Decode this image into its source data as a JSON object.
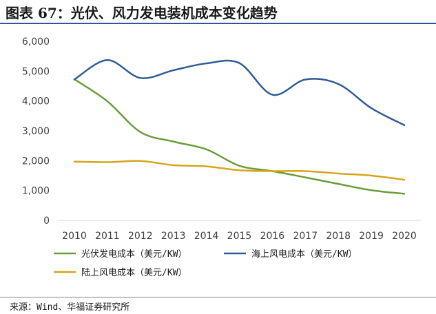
{
  "title": "图表 67：光伏、风力发电装机成本变化趋势",
  "source": "来源：Wind、华福证券研究所",
  "colors": {
    "solar": "#6a9c3a",
    "offshore": "#2e5d94",
    "onshore": "#d4a51a",
    "title_rule": "#2f5597"
  },
  "chart_data": {
    "type": "line",
    "x": [
      "2010",
      "2011",
      "2012",
      "2013",
      "2014",
      "2015",
      "2016",
      "2017",
      "2018",
      "2019",
      "2020"
    ],
    "y_ticks": [
      "0",
      "1,000",
      "2,000",
      "3,000",
      "4,000",
      "5,000",
      "6,000"
    ],
    "ylim": [
      0,
      6000
    ],
    "grid": false,
    "legend_position": "bottom",
    "series": [
      {
        "name": "光伏发电成本（美元/KW）",
        "color_key": "solar",
        "values": [
          4730,
          3990,
          2960,
          2640,
          2380,
          1830,
          1650,
          1440,
          1220,
          1010,
          890
        ]
      },
      {
        "name": "海上风电成本（美元/KW）",
        "color_key": "offshore",
        "values": [
          4720,
          5370,
          4770,
          5030,
          5260,
          5270,
          4210,
          4720,
          4570,
          3760,
          3190
        ]
      },
      {
        "name": "陆上风电成本（美元/KW）",
        "color_key": "onshore",
        "values": [
          1970,
          1950,
          1990,
          1850,
          1810,
          1680,
          1650,
          1650,
          1570,
          1500,
          1360
        ]
      }
    ]
  }
}
